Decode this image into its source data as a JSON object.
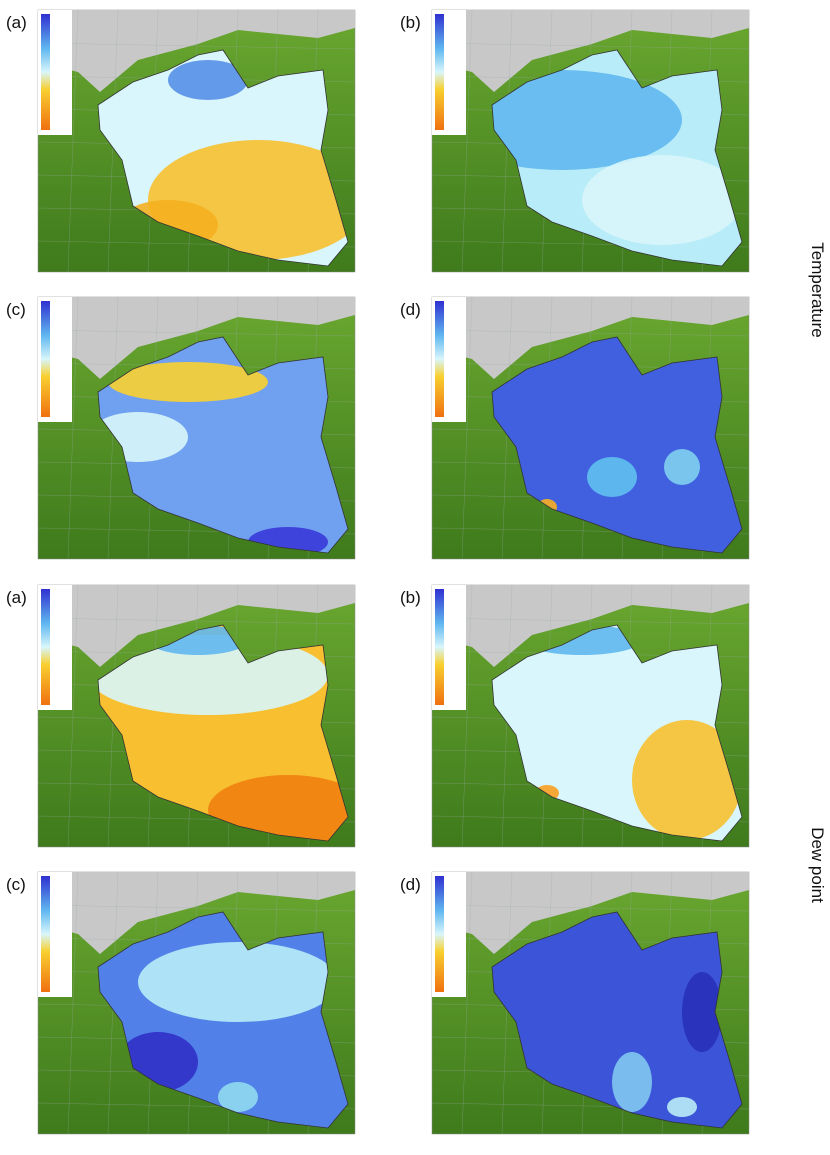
{
  "panels": [
    {
      "label": "(a)"
    },
    {
      "label": "(b)"
    },
    {
      "label": "(c)"
    },
    {
      "label": "(d)"
    },
    {
      "label": "(a)"
    },
    {
      "label": "(b)"
    },
    {
      "label": "(c)"
    },
    {
      "label": "(d)"
    }
  ],
  "row_labels": {
    "temperature": "Temperature",
    "dew_point": "Dew point"
  }
}
